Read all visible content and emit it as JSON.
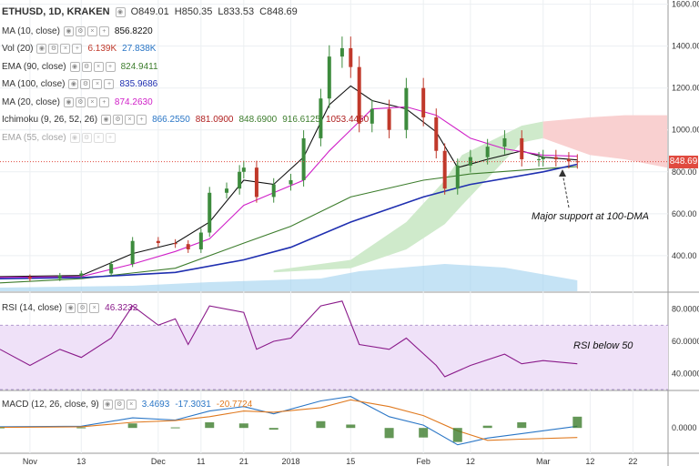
{
  "header": {
    "symbol": "ETHUSD, 1D, KRAKEN",
    "open": "O849.01",
    "high": "H850.35",
    "low": "L833.53",
    "close": "C848.69"
  },
  "indicators": [
    {
      "name": "MA (10, close)",
      "values": [
        "856.8220"
      ],
      "colors": [
        "#111111"
      ]
    },
    {
      "name": "Vol (20)",
      "values": [
        "6.139K",
        "27.838K"
      ],
      "colors": [
        "#c0392b",
        "#2a76c6"
      ]
    },
    {
      "name": "EMA (90, close)",
      "values": [
        "824.9411"
      ],
      "colors": [
        "#3d7d2d"
      ]
    },
    {
      "name": "MA (100, close)",
      "values": [
        "835.9686"
      ],
      "colors": [
        "#1f2fb0"
      ]
    },
    {
      "name": "MA (20, close)",
      "values": [
        "874.2630"
      ],
      "colors": [
        "#d020c8"
      ]
    },
    {
      "name": "Ichimoku (9, 26, 52, 26)",
      "values": [
        "866.2550",
        "881.0900",
        "848.6900",
        "916.6125",
        "1053.4450"
      ],
      "colors": [
        "#2a76c6",
        "#b02020",
        "#3d7d2d",
        "#3d7d2d",
        "#b02020"
      ]
    },
    {
      "name": "EMA (55, close)",
      "values": [],
      "colors": [],
      "faded": true
    }
  ],
  "rsi": {
    "name": "RSI (14, close)",
    "value": "46.3232",
    "color": "#8a1a8a"
  },
  "macd": {
    "name": "MACD (12, 26, close, 9)",
    "values": [
      "3.4693",
      "-17.3031",
      "-20.7724"
    ],
    "colors": [
      "#2a76c6",
      "#2a76c6",
      "#e07a20"
    ]
  },
  "annotations": {
    "support": "Major support at 100-DMA",
    "rsi_note": "RSI below 50"
  },
  "last_price_label": "848.69",
  "colors": {
    "up": "#3d8b3d",
    "down": "#c0392b",
    "cloud_bull": "#cfeacb",
    "cloud_bear": "#f9d0d0",
    "rsi_band": "#efe1f8"
  },
  "chart_data": {
    "type": "line",
    "title": "ETHUSD, 1D, KRAKEN",
    "x_tick_labels": [
      "Nov",
      "13",
      "Dec",
      "11",
      "21",
      "2018",
      "15",
      "Feb",
      "12",
      "Mar",
      "12",
      "22"
    ],
    "x_tick_dates": [
      "2017-11-01",
      "2017-11-13",
      "2017-12-01",
      "2017-12-11",
      "2017-12-21",
      "2018-01-01",
      "2018-01-15",
      "2018-02-01",
      "2018-02-12",
      "2018-03-01",
      "2018-03-12",
      "2018-03-22"
    ],
    "price_axis": {
      "ticks": [
        400,
        600,
        800,
        1000,
        1200,
        1400,
        1600
      ],
      "tick_labels": [
        "400.00",
        "600.00",
        "800.00",
        "1000.00",
        "1200.00",
        "1400.00",
        "1600.00"
      ],
      "range": [
        230,
        1620
      ]
    },
    "rsi_axis": {
      "ticks": [
        40,
        60,
        80
      ],
      "tick_labels": [
        "40.0000",
        "60.0000",
        "80.0000"
      ],
      "range": [
        30,
        90
      ],
      "band": [
        30,
        70
      ]
    },
    "macd_axis": {
      "ticks": [
        0
      ],
      "tick_labels": [
        "0.0000"
      ],
      "range": [
        -45,
        65
      ]
    },
    "series": [
      {
        "name": "ETHUSD close",
        "points": [
          [
            "2017-10-25",
            298
          ],
          [
            "2017-11-01",
            290
          ],
          [
            "2017-11-08",
            305
          ],
          [
            "2017-11-13",
            315
          ],
          [
            "2017-11-20",
            360
          ],
          [
            "2017-11-25",
            470
          ],
          [
            "2017-12-01",
            460
          ],
          [
            "2017-12-05",
            455
          ],
          [
            "2017-12-08",
            430
          ],
          [
            "2017-12-11",
            510
          ],
          [
            "2017-12-13",
            700
          ],
          [
            "2017-12-17",
            720
          ],
          [
            "2017-12-20",
            800
          ],
          [
            "2017-12-21",
            820
          ],
          [
            "2017-12-24",
            680
          ],
          [
            "2017-12-28",
            740
          ],
          [
            "2018-01-01",
            760
          ],
          [
            "2018-01-04",
            960
          ],
          [
            "2018-01-08",
            1150
          ],
          [
            "2018-01-10",
            1350
          ],
          [
            "2018-01-13",
            1390
          ],
          [
            "2018-01-15",
            1300
          ],
          [
            "2018-01-17",
            1030
          ],
          [
            "2018-01-20",
            1100
          ],
          [
            "2018-01-24",
            1000
          ],
          [
            "2018-01-28",
            1200
          ],
          [
            "2018-02-01",
            1060
          ],
          [
            "2018-02-04",
            900
          ],
          [
            "2018-02-06",
            720
          ],
          [
            "2018-02-09",
            830
          ],
          [
            "2018-02-12",
            870
          ],
          [
            "2018-02-16",
            920
          ],
          [
            "2018-02-20",
            960
          ],
          [
            "2018-02-24",
            860
          ],
          [
            "2018-02-28",
            860
          ],
          [
            "2018-03-01",
            870
          ],
          [
            "2018-03-04",
            860
          ],
          [
            "2018-03-07",
            850
          ],
          [
            "2018-03-09",
            849
          ]
        ]
      },
      {
        "name": "MA (10, close)",
        "points": [
          [
            "2017-10-25",
            300
          ],
          [
            "2017-11-13",
            305
          ],
          [
            "2017-11-25",
            410
          ],
          [
            "2017-12-05",
            460
          ],
          [
            "2017-12-13",
            560
          ],
          [
            "2017-12-21",
            760
          ],
          [
            "2017-12-28",
            740
          ],
          [
            "2018-01-04",
            870
          ],
          [
            "2018-01-10",
            1120
          ],
          [
            "2018-01-15",
            1210
          ],
          [
            "2018-01-20",
            1140
          ],
          [
            "2018-01-28",
            1100
          ],
          [
            "2018-02-04",
            990
          ],
          [
            "2018-02-09",
            820
          ],
          [
            "2018-02-16",
            860
          ],
          [
            "2018-02-24",
            900
          ],
          [
            "2018-03-01",
            870
          ],
          [
            "2018-03-09",
            857
          ]
        ]
      },
      {
        "name": "MA (20, close)",
        "points": [
          [
            "2017-10-25",
            296
          ],
          [
            "2017-11-13",
            300
          ],
          [
            "2017-11-25",
            360
          ],
          [
            "2017-12-05",
            420
          ],
          [
            "2017-12-13",
            480
          ],
          [
            "2017-12-21",
            640
          ],
          [
            "2017-12-28",
            700
          ],
          [
            "2018-01-04",
            760
          ],
          [
            "2018-01-10",
            900
          ],
          [
            "2018-01-20",
            1100
          ],
          [
            "2018-01-28",
            1110
          ],
          [
            "2018-02-04",
            1070
          ],
          [
            "2018-02-12",
            960
          ],
          [
            "2018-02-20",
            910
          ],
          [
            "2018-03-01",
            880
          ],
          [
            "2018-03-09",
            874
          ]
        ]
      },
      {
        "name": "EMA (90, close)",
        "points": [
          [
            "2017-10-25",
            270
          ],
          [
            "2017-11-13",
            290
          ],
          [
            "2017-12-05",
            340
          ],
          [
            "2017-12-21",
            460
          ],
          [
            "2018-01-01",
            540
          ],
          [
            "2018-01-15",
            680
          ],
          [
            "2018-02-01",
            760
          ],
          [
            "2018-02-12",
            790
          ],
          [
            "2018-03-01",
            815
          ],
          [
            "2018-03-09",
            825
          ]
        ]
      },
      {
        "name": "MA (100, close)",
        "points": [
          [
            "2017-10-25",
            290
          ],
          [
            "2017-11-13",
            295
          ],
          [
            "2017-12-05",
            320
          ],
          [
            "2017-12-21",
            380
          ],
          [
            "2018-01-01",
            440
          ],
          [
            "2018-01-15",
            560
          ],
          [
            "2018-02-01",
            680
          ],
          [
            "2018-02-12",
            740
          ],
          [
            "2018-03-01",
            800
          ],
          [
            "2018-03-09",
            836
          ]
        ]
      },
      {
        "name": "RSI (14, close)",
        "points": [
          [
            "2017-10-25",
            55
          ],
          [
            "2017-11-01",
            45
          ],
          [
            "2017-11-08",
            55
          ],
          [
            "2017-11-13",
            50
          ],
          [
            "2017-11-20",
            62
          ],
          [
            "2017-11-25",
            82
          ],
          [
            "2017-12-01",
            70
          ],
          [
            "2017-12-05",
            74
          ],
          [
            "2017-12-08",
            58
          ],
          [
            "2017-12-13",
            82
          ],
          [
            "2017-12-21",
            78
          ],
          [
            "2017-12-24",
            55
          ],
          [
            "2017-12-28",
            60
          ],
          [
            "2018-01-01",
            62
          ],
          [
            "2018-01-08",
            82
          ],
          [
            "2018-01-13",
            85
          ],
          [
            "2018-01-17",
            58
          ],
          [
            "2018-01-24",
            55
          ],
          [
            "2018-01-28",
            62
          ],
          [
            "2018-02-04",
            45
          ],
          [
            "2018-02-06",
            38
          ],
          [
            "2018-02-12",
            45
          ],
          [
            "2018-02-20",
            52
          ],
          [
            "2018-02-24",
            46
          ],
          [
            "2018-03-01",
            48
          ],
          [
            "2018-03-09",
            46
          ]
        ]
      },
      {
        "name": "MACD",
        "points": [
          [
            "2017-10-25",
            2
          ],
          [
            "2017-11-13",
            3
          ],
          [
            "2017-11-25",
            18
          ],
          [
            "2017-12-05",
            14
          ],
          [
            "2017-12-13",
            30
          ],
          [
            "2017-12-21",
            38
          ],
          [
            "2017-12-28",
            25
          ],
          [
            "2018-01-08",
            48
          ],
          [
            "2018-01-15",
            56
          ],
          [
            "2018-01-24",
            20
          ],
          [
            "2018-02-01",
            5
          ],
          [
            "2018-02-09",
            -30
          ],
          [
            "2018-02-16",
            -18
          ],
          [
            "2018-02-24",
            -10
          ],
          [
            "2018-03-09",
            3
          ]
        ]
      },
      {
        "name": "Signal",
        "points": [
          [
            "2017-10-25",
            1
          ],
          [
            "2017-11-13",
            2
          ],
          [
            "2017-11-25",
            10
          ],
          [
            "2017-12-05",
            13
          ],
          [
            "2017-12-13",
            20
          ],
          [
            "2017-12-21",
            30
          ],
          [
            "2017-12-28",
            28
          ],
          [
            "2018-01-08",
            36
          ],
          [
            "2018-01-15",
            50
          ],
          [
            "2018-01-24",
            38
          ],
          [
            "2018-02-01",
            22
          ],
          [
            "2018-02-09",
            -5
          ],
          [
            "2018-02-16",
            -22
          ],
          [
            "2018-02-24",
            -20
          ],
          [
            "2018-03-09",
            -17
          ]
        ]
      }
    ],
    "grid": true
  }
}
